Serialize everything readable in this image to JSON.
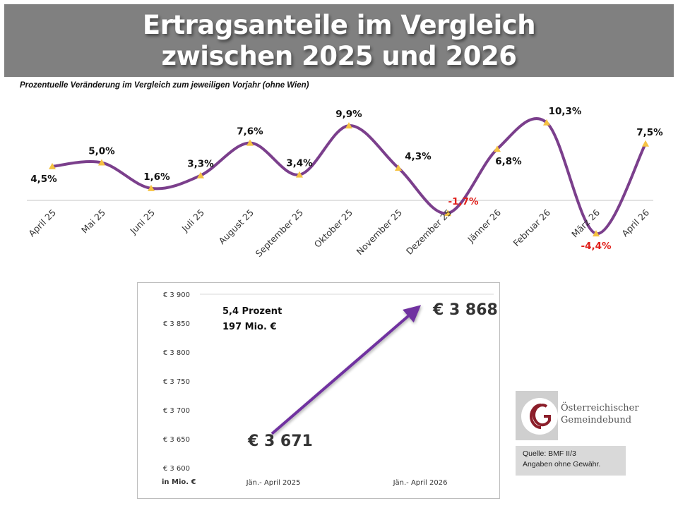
{
  "header": {
    "title_line1": "Ertragsanteile im Vergleich",
    "title_line2": "zwischen 2025 und 2026"
  },
  "subtitle": "Prozentuelle Veränderung im Vergleich zum jeweiligen Vorjahr (ohne Wien)",
  "colors": {
    "banner": "#808080",
    "line": "#7b3f8c",
    "marker": "#f5c242",
    "negative_label": "#e0201b",
    "positive_label": "#111111",
    "arrow": "#7030a0"
  },
  "chart_data": [
    {
      "type": "line",
      "title": "Prozentuelle Veränderung im Vergleich zum jeweiligen Vorjahr (ohne Wien)",
      "xlabel": "",
      "ylabel": "",
      "categories": [
        "April 25",
        "Mai 25",
        "Juni 25",
        "Juli 25",
        "August 25",
        "September 25",
        "Oktober 25",
        "November 25",
        "Dezember 25",
        "Jänner 26",
        "Februar 26",
        "März 26",
        "April 26"
      ],
      "values": [
        4.5,
        5.0,
        1.6,
        3.3,
        7.6,
        3.4,
        9.9,
        4.3,
        -1.7,
        6.8,
        10.3,
        -4.4,
        7.5
      ],
      "labels": [
        "4,5%",
        "5,0%",
        "1,6%",
        "3,3%",
        "7,6%",
        "3,4%",
        "9,9%",
        "4,3%",
        "-1,7%",
        "6,8%",
        "10,3%",
        "-4,4%",
        "7,5%"
      ],
      "ylim": [
        -5,
        12
      ],
      "grid": false,
      "smooth": true,
      "marker": "triangle"
    },
    {
      "type": "line",
      "title": "",
      "ylabel": "in Mio. €",
      "categories": [
        "Jän.- April 2025",
        "Jän.- April 2026"
      ],
      "values": [
        3671,
        3868
      ],
      "labels": [
        "€ 3 671",
        "€ 3 868"
      ],
      "yticks": [
        "€ 3 900",
        "€ 3 850",
        "€ 3 800",
        "€ 3 750",
        "€ 3 700",
        "€ 3 650",
        "€ 3 600"
      ],
      "ylim": [
        3600,
        3900
      ],
      "annotation": [
        "5,4 Prozent",
        "197 Mio. €"
      ],
      "arrow": true
    }
  ],
  "logo": {
    "line1": "Österreichischer",
    "line2": "Gemeindebund"
  },
  "source": {
    "line1": "Quelle: BMF II/3",
    "line2": "Angaben ohne Gewähr."
  }
}
